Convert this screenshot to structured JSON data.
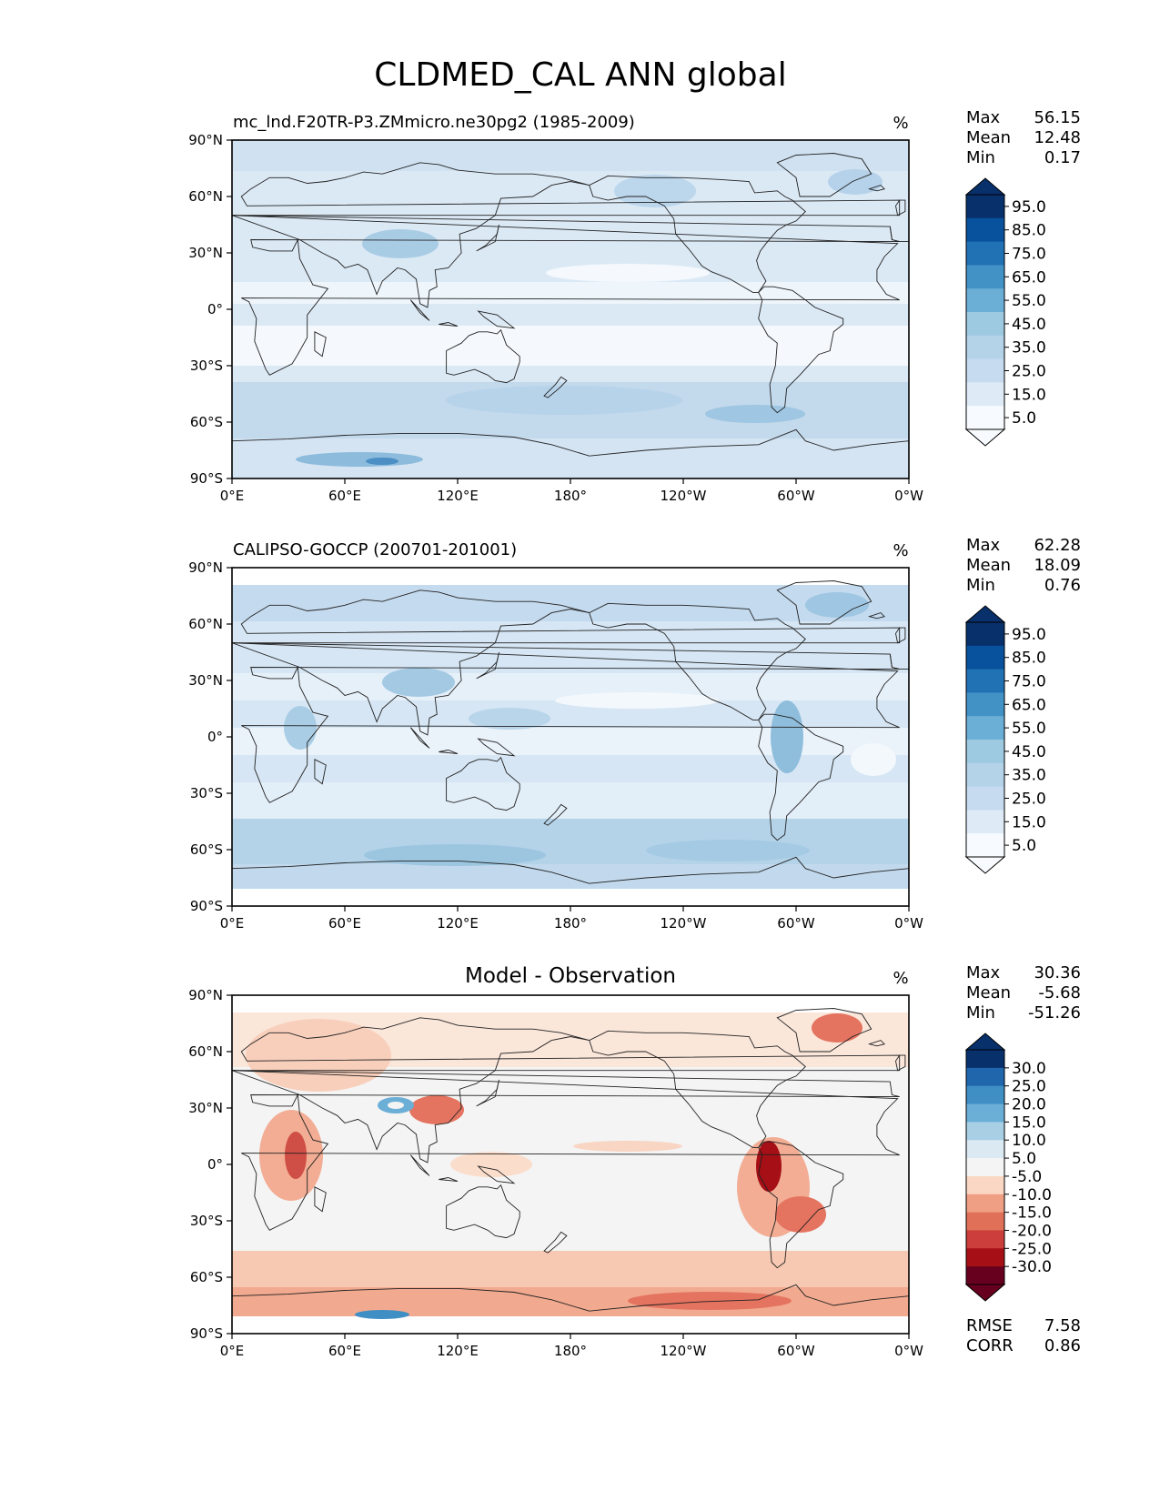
{
  "figure": {
    "title": "CLDMED_CAL ANN global"
  },
  "colors": {
    "land_outline": "#222222",
    "seq": [
      "#f7fbff",
      "#deebf7",
      "#c6dbef",
      "#b4d3e9",
      "#9ecae1",
      "#6baed6",
      "#4292c6",
      "#2171b5",
      "#08519c",
      "#08306b"
    ],
    "div": [
      "#67001f",
      "#a50f15",
      "#cb3e3b",
      "#e07058",
      "#ef9f83",
      "#fad7c4",
      "#f4f4f4",
      "#dbe9f3",
      "#a9cfe5",
      "#6baed6",
      "#3f8ec4",
      "#1f66ad",
      "#08306b"
    ]
  },
  "chart_data": [
    {
      "type": "heatmap",
      "title": "mc_lnd.F20TR-P3.ZMmicro.ne30pg2 (1985-2009)",
      "units": "%",
      "stats": {
        "max_label": "Max",
        "max": "56.15",
        "mean_label": "Mean",
        "mean": "12.48",
        "min_label": "Min",
        "min": "0.17"
      },
      "lat_range": [
        -90,
        90
      ],
      "lon_range": [
        0,
        360
      ],
      "xticks": [
        "0°E",
        "60°E",
        "120°E",
        "180°",
        "120°W",
        "60°W",
        "0°W"
      ],
      "yticks": [
        "90°N",
        "60°N",
        "30°N",
        "0°",
        "30°S",
        "60°S",
        "90°S"
      ],
      "colorbar_levels": [
        "95.0",
        "85.0",
        "75.0",
        "65.0",
        "55.0",
        "45.0",
        "35.0",
        "25.0",
        "15.0",
        "5.0"
      ],
      "colorbar": "sequential"
    },
    {
      "type": "heatmap",
      "title": "CALIPSO-GOCCP (200701-201001)",
      "units": "%",
      "stats": {
        "max_label": "Max",
        "max": "62.28",
        "mean_label": "Mean",
        "mean": "18.09",
        "min_label": "Min",
        "min": "0.76"
      },
      "lat_range": [
        -90,
        90
      ],
      "lon_range": [
        0,
        360
      ],
      "xticks": [
        "0°E",
        "60°E",
        "120°E",
        "180°",
        "120°W",
        "60°W",
        "0°W"
      ],
      "yticks": [
        "90°N",
        "60°N",
        "30°N",
        "0°",
        "30°S",
        "60°S",
        "90°S"
      ],
      "colorbar_levels": [
        "95.0",
        "85.0",
        "75.0",
        "65.0",
        "55.0",
        "45.0",
        "35.0",
        "25.0",
        "15.0",
        "5.0"
      ],
      "colorbar": "sequential"
    },
    {
      "type": "heatmap",
      "title": "Model - Observation",
      "units": "%",
      "stats": {
        "max_label": "Max",
        "max": "30.36",
        "mean_label": "Mean",
        "mean": "-5.68",
        "min_label": "Min",
        "min": "-51.26"
      },
      "lat_range": [
        -90,
        90
      ],
      "lon_range": [
        0,
        360
      ],
      "xticks": [
        "0°E",
        "60°E",
        "120°E",
        "180°",
        "120°W",
        "60°W",
        "0°W"
      ],
      "yticks": [
        "90°N",
        "60°N",
        "30°N",
        "0°",
        "30°S",
        "60°S",
        "90°S"
      ],
      "colorbar_levels": [
        "30.0",
        "25.0",
        "20.0",
        "15.0",
        "10.0",
        "5.0",
        "-5.0",
        "-10.0",
        "-15.0",
        "-20.0",
        "-25.0",
        "-30.0"
      ],
      "colorbar": "diverging",
      "metrics": {
        "rmse_label": "RMSE",
        "rmse": "7.58",
        "corr_label": "CORR",
        "corr": "0.86"
      }
    }
  ]
}
